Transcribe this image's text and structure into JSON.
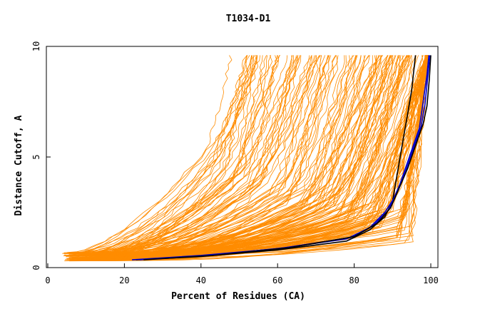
{
  "chart_data": {
    "type": "line",
    "title": "T1034-D1",
    "xlabel": "Percent of Residues (CA)",
    "ylabel": "Distance Cutoff, A",
    "xlim": [
      0,
      100
    ],
    "ylim": [
      0,
      10
    ],
    "x_ticks": [
      "0",
      "20",
      "40",
      "60",
      "80",
      "100"
    ],
    "y_ticks": [
      "0",
      "5",
      "10"
    ],
    "grid": false,
    "colors": {
      "background_models": "#ff8c00",
      "highlight_black": "#000000",
      "highlight_blue": "#0000cc",
      "axes": "#000000"
    },
    "series": [
      {
        "color": "#000000",
        "x": [
          23,
          40,
          60,
          78,
          84,
          88,
          90,
          91,
          92,
          93,
          94,
          95,
          96
        ],
        "y": [
          0.35,
          0.5,
          0.8,
          1.2,
          1.7,
          2.3,
          3.0,
          4.0,
          5.0,
          6.0,
          7.0,
          8.0,
          9.6
        ]
      },
      {
        "color": "#0000cc",
        "x": [
          22,
          40,
          60,
          78,
          84,
          88,
          91,
          93,
          95,
          97,
          98,
          99,
          99.5
        ],
        "y": [
          0.35,
          0.55,
          0.85,
          1.3,
          1.8,
          2.5,
          3.3,
          4.3,
          5.3,
          6.3,
          7.5,
          8.7,
          9.6
        ]
      },
      {
        "color": "#0000cc",
        "x": [
          24,
          42,
          62,
          79,
          85,
          89,
          91,
          93.5,
          95.5,
          97.5,
          98.5,
          99.2,
          99.8
        ],
        "y": [
          0.35,
          0.55,
          0.9,
          1.35,
          1.9,
          2.6,
          3.4,
          4.4,
          5.4,
          6.4,
          7.4,
          8.6,
          9.6
        ]
      },
      {
        "color": "#000000",
        "x": [
          25,
          43,
          63,
          80,
          86,
          89.5,
          91.5,
          94,
          96,
          98,
          99,
          99.6,
          100
        ],
        "y": [
          0.35,
          0.55,
          0.9,
          1.4,
          2.0,
          2.7,
          3.5,
          4.5,
          5.5,
          6.5,
          7.3,
          8.5,
          9.6
        ]
      }
    ],
    "background_model_count": 180
  }
}
